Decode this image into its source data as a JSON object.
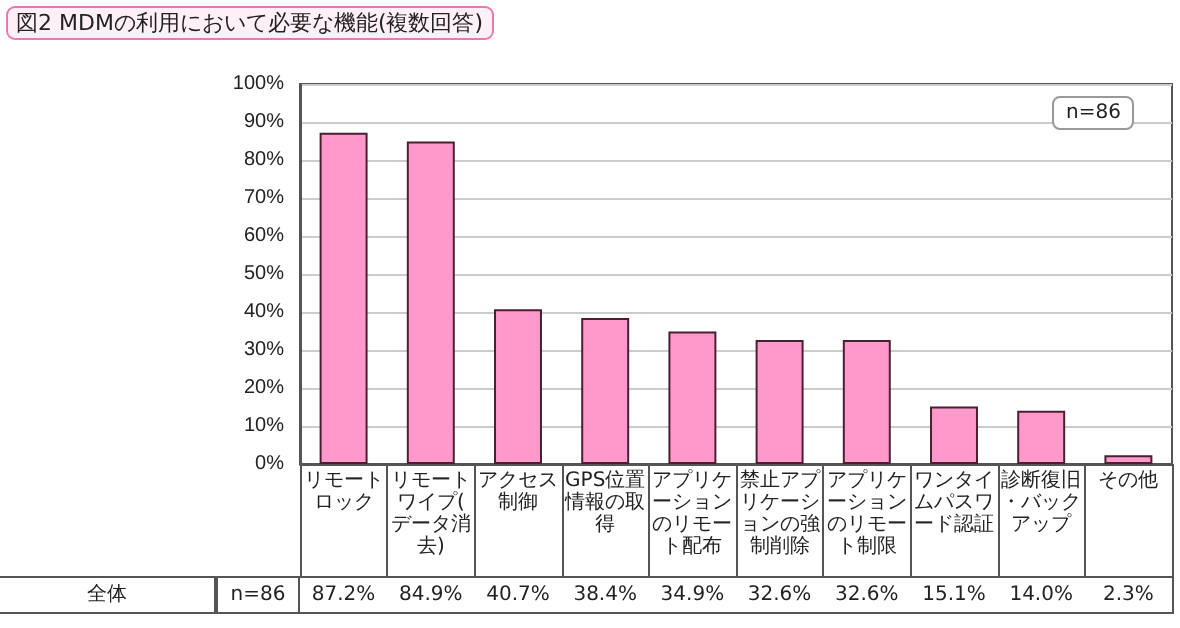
{
  "chart_data": {
    "type": "bar",
    "title": "図2 MDMの利用において必要な機能(複数回答)",
    "categories": [
      "リモートロック",
      "リモートワイプ(データ消去)",
      "アクセス制御",
      "GPS位置情報の取得",
      "アプリケーションのリモート配布",
      "禁止アプリケーションの強制削除",
      "アプリケーションのリモート制限",
      "ワンタイムパスワード認証",
      "診断復旧・バックアップ",
      "その他"
    ],
    "values": [
      87.2,
      84.9,
      40.7,
      38.4,
      34.9,
      32.6,
      32.6,
      15.1,
      14.0,
      2.3
    ],
    "value_labels": [
      "87.2%",
      "84.9%",
      "40.7%",
      "38.4%",
      "34.9%",
      "32.6%",
      "32.6%",
      "15.1%",
      "14.0%",
      "2.3%"
    ],
    "color": "#ff99cc",
    "ylim": [
      0,
      100
    ],
    "yticks": [
      {
        "value": 0,
        "label": "0%"
      },
      {
        "value": 10,
        "label": "10%"
      },
      {
        "value": 20,
        "label": "20%"
      },
      {
        "value": 30,
        "label": "30%"
      },
      {
        "value": 40,
        "label": "40%"
      },
      {
        "value": 50,
        "label": "50%"
      },
      {
        "value": 60,
        "label": "60%"
      },
      {
        "value": 70,
        "label": "70%"
      },
      {
        "value": 80,
        "label": "80%"
      },
      {
        "value": 90,
        "label": "90%"
      },
      {
        "value": 100,
        "label": "100%"
      }
    ],
    "grid": "y",
    "annotations": [
      "n=86",
      "全体",
      "n=86"
    ]
  }
}
